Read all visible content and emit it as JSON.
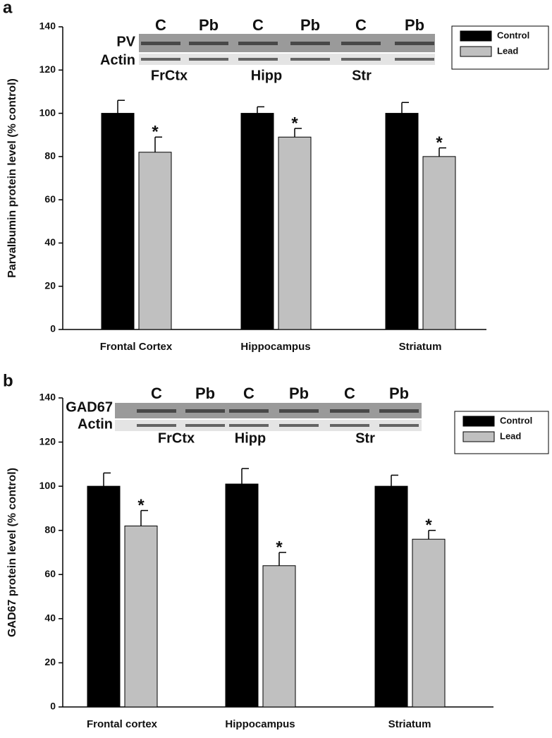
{
  "chart_data": [
    {
      "type": "bar",
      "panel_label": "a",
      "y_label": "Parvalbumin protein level (% control)",
      "categories": [
        "Frontal Cortex",
        "Hippocampus",
        "Striatum"
      ],
      "series": [
        {
          "name": "Control",
          "color": "#000000",
          "values": [
            100,
            100,
            100
          ],
          "errors": [
            6,
            3,
            5
          ]
        },
        {
          "name": "Lead",
          "color": "#c0c0c0",
          "values": [
            82,
            89,
            80
          ],
          "errors": [
            7,
            4,
            4
          ],
          "annotations": [
            "*",
            "*",
            "*"
          ]
        }
      ],
      "blot": {
        "rows": [
          "PV",
          "Actin"
        ],
        "lanes": [
          "C",
          "Pb",
          "C",
          "Pb",
          "C",
          "Pb"
        ],
        "regions": [
          "FrCtx",
          "Hipp",
          "Str"
        ]
      },
      "ylim": [
        0,
        140
      ],
      "yticks": [
        0,
        20,
        40,
        60,
        80,
        100,
        120,
        140
      ],
      "legend": "upper right"
    },
    {
      "type": "bar",
      "panel_label": "b",
      "y_label": "GAD67 protein level (% control)",
      "categories": [
        "Frontal cortex",
        "Hippocampus",
        "Striatum"
      ],
      "series": [
        {
          "name": "Control",
          "color": "#000000",
          "values": [
            100,
            101,
            100
          ],
          "errors": [
            6,
            7,
            5
          ]
        },
        {
          "name": "Lead",
          "color": "#c0c0c0",
          "values": [
            82,
            64,
            76
          ],
          "errors": [
            7,
            6,
            4
          ],
          "annotations": [
            "*",
            "*",
            "*"
          ]
        }
      ],
      "blot": {
        "rows": [
          "GAD67",
          "Actin"
        ],
        "lanes": [
          "C",
          "Pb",
          "C",
          "Pb",
          "C",
          "Pb"
        ],
        "regions": [
          "FrCtx",
          "Hipp",
          "Str"
        ]
      },
      "ylim": [
        0,
        140
      ],
      "yticks": [
        0,
        20,
        40,
        60,
        80,
        100,
        120,
        140
      ],
      "legend": "upper right"
    }
  ]
}
